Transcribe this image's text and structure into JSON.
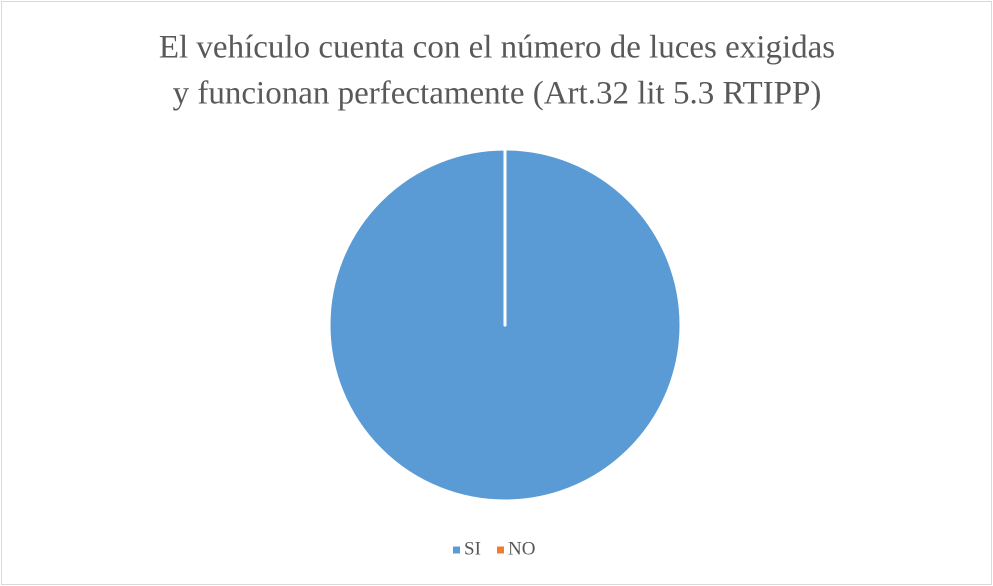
{
  "chart_data": {
    "type": "pie",
    "title": [
      "El vehículo cuenta con el número de luces exigidas",
      "y funcionan perfectamente (Art.32 lit 5.3 RTIPP)"
    ],
    "categories": [
      "SI",
      "NO"
    ],
    "values": [
      100,
      0
    ],
    "colors": [
      "#5b9bd5",
      "#ed7d31"
    ],
    "legend": "bottom"
  }
}
